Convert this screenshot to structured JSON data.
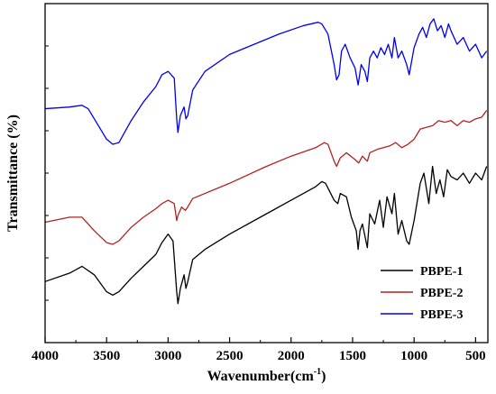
{
  "chart_data": {
    "type": "line",
    "title": "",
    "xlabel": "Wavenumber(cm",
    "xlabel_sup": "-1",
    "xlabel_close": ")",
    "ylabel": "Transmittance (%)",
    "xlim": [
      4000,
      400
    ],
    "xticks": [
      4000,
      3500,
      3000,
      2500,
      2000,
      1500,
      1000,
      500
    ],
    "yticks_shown": false,
    "grid": false,
    "legend_position": "bottom-right",
    "series": [
      {
        "name": "PBPE-1",
        "color": "#000000",
        "points": [
          [
            4000,
            0.18
          ],
          [
            3800,
            0.205
          ],
          [
            3700,
            0.225
          ],
          [
            3600,
            0.2
          ],
          [
            3500,
            0.15
          ],
          [
            3450,
            0.14
          ],
          [
            3400,
            0.15
          ],
          [
            3300,
            0.19
          ],
          [
            3200,
            0.225
          ],
          [
            3100,
            0.26
          ],
          [
            3050,
            0.295
          ],
          [
            3000,
            0.32
          ],
          [
            2960,
            0.3
          ],
          [
            2930,
            0.15
          ],
          [
            2920,
            0.115
          ],
          [
            2900,
            0.16
          ],
          [
            2870,
            0.2
          ],
          [
            2855,
            0.16
          ],
          [
            2840,
            0.18
          ],
          [
            2800,
            0.245
          ],
          [
            2700,
            0.275
          ],
          [
            2500,
            0.32
          ],
          [
            2200,
            0.38
          ],
          [
            2000,
            0.42
          ],
          [
            1800,
            0.46
          ],
          [
            1750,
            0.475
          ],
          [
            1720,
            0.47
          ],
          [
            1650,
            0.42
          ],
          [
            1620,
            0.41
          ],
          [
            1600,
            0.44
          ],
          [
            1550,
            0.43
          ],
          [
            1510,
            0.37
          ],
          [
            1470,
            0.33
          ],
          [
            1455,
            0.275
          ],
          [
            1440,
            0.33
          ],
          [
            1420,
            0.35
          ],
          [
            1380,
            0.28
          ],
          [
            1360,
            0.38
          ],
          [
            1320,
            0.35
          ],
          [
            1280,
            0.42
          ],
          [
            1250,
            0.34
          ],
          [
            1220,
            0.43
          ],
          [
            1180,
            0.38
          ],
          [
            1160,
            0.44
          ],
          [
            1130,
            0.32
          ],
          [
            1100,
            0.36
          ],
          [
            1060,
            0.3
          ],
          [
            1040,
            0.29
          ],
          [
            1000,
            0.36
          ],
          [
            950,
            0.47
          ],
          [
            920,
            0.5
          ],
          [
            880,
            0.41
          ],
          [
            850,
            0.52
          ],
          [
            820,
            0.44
          ],
          [
            790,
            0.48
          ],
          [
            760,
            0.43
          ],
          [
            730,
            0.51
          ],
          [
            700,
            0.49
          ],
          [
            650,
            0.48
          ],
          [
            600,
            0.5
          ],
          [
            550,
            0.47
          ],
          [
            500,
            0.5
          ],
          [
            450,
            0.48
          ],
          [
            410,
            0.52
          ]
        ]
      },
      {
        "name": "PBPE-2",
        "color": "#b22222",
        "points": [
          [
            4000,
            0.355
          ],
          [
            3800,
            0.37
          ],
          [
            3700,
            0.37
          ],
          [
            3600,
            0.33
          ],
          [
            3500,
            0.295
          ],
          [
            3450,
            0.29
          ],
          [
            3400,
            0.3
          ],
          [
            3300,
            0.34
          ],
          [
            3200,
            0.37
          ],
          [
            3100,
            0.395
          ],
          [
            3050,
            0.41
          ],
          [
            3000,
            0.42
          ],
          [
            2950,
            0.41
          ],
          [
            2930,
            0.36
          ],
          [
            2920,
            0.375
          ],
          [
            2890,
            0.4
          ],
          [
            2860,
            0.39
          ],
          [
            2840,
            0.4
          ],
          [
            2800,
            0.425
          ],
          [
            2500,
            0.47
          ],
          [
            2200,
            0.52
          ],
          [
            2000,
            0.55
          ],
          [
            1800,
            0.575
          ],
          [
            1730,
            0.59
          ],
          [
            1700,
            0.585
          ],
          [
            1650,
            0.535
          ],
          [
            1630,
            0.52
          ],
          [
            1600,
            0.545
          ],
          [
            1550,
            0.56
          ],
          [
            1480,
            0.54
          ],
          [
            1450,
            0.53
          ],
          [
            1420,
            0.55
          ],
          [
            1380,
            0.535
          ],
          [
            1360,
            0.56
          ],
          [
            1300,
            0.57
          ],
          [
            1250,
            0.575
          ],
          [
            1200,
            0.58
          ],
          [
            1150,
            0.59
          ],
          [
            1100,
            0.575
          ],
          [
            1050,
            0.585
          ],
          [
            1000,
            0.6
          ],
          [
            950,
            0.63
          ],
          [
            900,
            0.635
          ],
          [
            850,
            0.64
          ],
          [
            800,
            0.655
          ],
          [
            750,
            0.65
          ],
          [
            700,
            0.655
          ],
          [
            650,
            0.64
          ],
          [
            600,
            0.655
          ],
          [
            550,
            0.65
          ],
          [
            500,
            0.66
          ],
          [
            450,
            0.665
          ],
          [
            410,
            0.685
          ]
        ]
      },
      {
        "name": "PBPE-3",
        "color": "#0000ee",
        "points": [
          [
            4000,
            0.69
          ],
          [
            3800,
            0.695
          ],
          [
            3700,
            0.7
          ],
          [
            3650,
            0.69
          ],
          [
            3600,
            0.66
          ],
          [
            3500,
            0.6
          ],
          [
            3450,
            0.585
          ],
          [
            3400,
            0.59
          ],
          [
            3300,
            0.655
          ],
          [
            3200,
            0.71
          ],
          [
            3100,
            0.755
          ],
          [
            3050,
            0.79
          ],
          [
            3000,
            0.8
          ],
          [
            2950,
            0.78
          ],
          [
            2930,
            0.66
          ],
          [
            2920,
            0.62
          ],
          [
            2900,
            0.67
          ],
          [
            2870,
            0.695
          ],
          [
            2855,
            0.66
          ],
          [
            2840,
            0.67
          ],
          [
            2800,
            0.745
          ],
          [
            2700,
            0.8
          ],
          [
            2500,
            0.85
          ],
          [
            2300,
            0.88
          ],
          [
            2100,
            0.91
          ],
          [
            1900,
            0.935
          ],
          [
            1780,
            0.945
          ],
          [
            1750,
            0.94
          ],
          [
            1700,
            0.91
          ],
          [
            1650,
            0.82
          ],
          [
            1630,
            0.775
          ],
          [
            1610,
            0.79
          ],
          [
            1590,
            0.86
          ],
          [
            1560,
            0.88
          ],
          [
            1520,
            0.84
          ],
          [
            1480,
            0.81
          ],
          [
            1455,
            0.76
          ],
          [
            1430,
            0.82
          ],
          [
            1400,
            0.8
          ],
          [
            1380,
            0.77
          ],
          [
            1360,
            0.84
          ],
          [
            1330,
            0.86
          ],
          [
            1300,
            0.84
          ],
          [
            1270,
            0.87
          ],
          [
            1240,
            0.85
          ],
          [
            1210,
            0.88
          ],
          [
            1180,
            0.84
          ],
          [
            1160,
            0.9
          ],
          [
            1130,
            0.84
          ],
          [
            1100,
            0.86
          ],
          [
            1060,
            0.82
          ],
          [
            1040,
            0.79
          ],
          [
            1000,
            0.87
          ],
          [
            960,
            0.91
          ],
          [
            930,
            0.93
          ],
          [
            900,
            0.9
          ],
          [
            870,
            0.94
          ],
          [
            840,
            0.955
          ],
          [
            810,
            0.92
          ],
          [
            780,
            0.935
          ],
          [
            750,
            0.9
          ],
          [
            720,
            0.94
          ],
          [
            700,
            0.92
          ],
          [
            650,
            0.88
          ],
          [
            600,
            0.9
          ],
          [
            550,
            0.86
          ],
          [
            500,
            0.88
          ],
          [
            450,
            0.84
          ],
          [
            410,
            0.86
          ]
        ]
      }
    ]
  }
}
